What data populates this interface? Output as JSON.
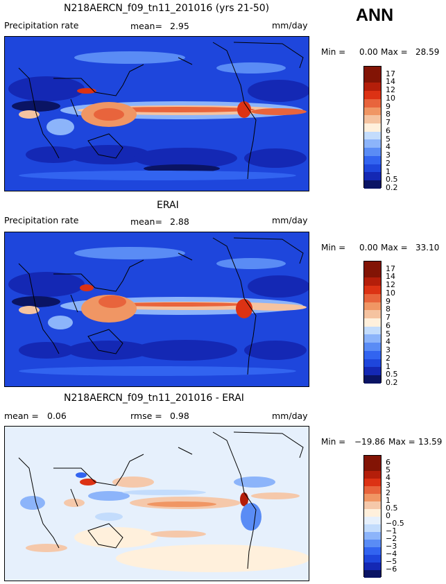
{
  "season": "ANN",
  "colors": {
    "fields": [
      "#0a1464",
      "#1428b4",
      "#1e46dc",
      "#3264f0",
      "#5a8cf5",
      "#8cb4fa",
      "#c3dcfc",
      "#fff0dc",
      "#f5c3a0",
      "#f09664",
      "#e8643c",
      "#dc3214",
      "#b41e0a",
      "#821405"
    ],
    "diff": [
      "#0a1464",
      "#1428b4",
      "#1e46dc",
      "#3264f0",
      "#5a8cf5",
      "#8cb4fa",
      "#c3dcfc",
      "#e6f0fc",
      "#fff0dc",
      "#f5c8aa",
      "#f09664",
      "#e8643c",
      "#dc3214",
      "#b41e0a",
      "#821405"
    ]
  },
  "panels": [
    {
      "title": "N218AERCN_f09_tn11_201016 (yrs 21-50)",
      "variable": "Precipitation rate",
      "mean_label": "mean=",
      "mean": "2.95",
      "units": "mm/day",
      "min_label": "Min =",
      "min": "0.00",
      "max_label": "Max =",
      "max": "28.59",
      "levels": [
        "17",
        "14",
        "12",
        "10",
        "9",
        "8",
        "7",
        "6",
        "5",
        "4",
        "3",
        "2",
        "1",
        "0.5",
        "0.2"
      ]
    },
    {
      "title": "ERAI",
      "variable": "Precipitation rate",
      "mean_label": "mean=",
      "mean": "2.88",
      "units": "mm/day",
      "min_label": "Min =",
      "min": "0.00",
      "max_label": "Max =",
      "max": "33.10",
      "levels": [
        "17",
        "14",
        "12",
        "10",
        "9",
        "8",
        "7",
        "6",
        "5",
        "4",
        "3",
        "2",
        "1",
        "0.5",
        "0.2"
      ]
    },
    {
      "title": "N218AERCN_f09_tn11_201016 - ERAI",
      "mean_label": "mean =",
      "mean": "0.06",
      "rmse_label": "rmse =",
      "rmse": "0.98",
      "units": "mm/day",
      "min_label": "Min =",
      "min": "−19.86",
      "max_label": "Max =",
      "max": "13.59",
      "levels": [
        "6",
        "5",
        "4",
        "3",
        "2",
        "1",
        "0.5",
        "0",
        "−0.5",
        "−1",
        "−2",
        "−3",
        "−4",
        "−5",
        "−6"
      ]
    }
  ]
}
